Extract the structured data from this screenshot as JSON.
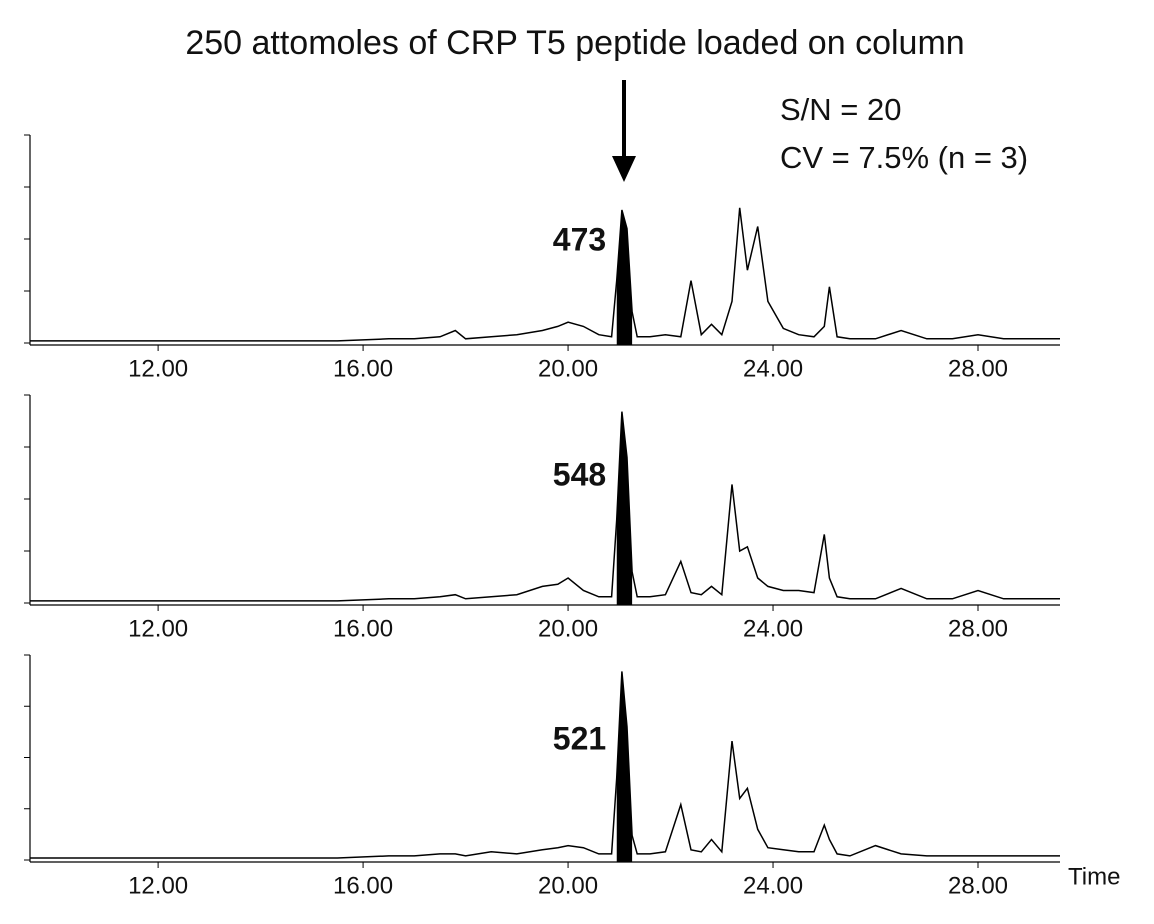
{
  "title": "250 attomoles of CRP T5 peptide loaded on column",
  "annotations": [
    "S/N = 20",
    "CV = 7.5% (n = 3)"
  ],
  "chart_data": [
    {
      "type": "line",
      "peak_area": 473,
      "peak_window": [
        20.9,
        21.3
      ],
      "x": [
        9.5,
        10.5,
        11.5,
        12.5,
        13.5,
        14.5,
        15.5,
        16.5,
        17.0,
        17.5,
        17.8,
        18.0,
        18.5,
        19.0,
        19.5,
        19.8,
        20.0,
        20.3,
        20.6,
        20.85,
        20.95,
        21.05,
        21.15,
        21.25,
        21.35,
        21.6,
        21.9,
        22.2,
        22.4,
        22.6,
        22.8,
        23.0,
        23.2,
        23.35,
        23.5,
        23.7,
        23.9,
        24.2,
        24.5,
        24.8,
        25.0,
        25.1,
        25.25,
        25.5,
        26.0,
        26.5,
        27.0,
        27.5,
        28.0,
        28.5,
        29.0,
        29.6
      ],
      "series": [
        {
          "color": "#000000",
          "values": [
            1,
            1,
            1,
            1,
            1,
            1,
            1,
            2,
            2,
            3,
            6,
            2,
            3,
            4,
            6,
            8,
            10,
            8,
            4,
            3,
            30,
            64,
            55,
            15,
            3,
            3,
            4,
            3,
            30,
            4,
            9,
            4,
            20,
            65,
            35,
            56,
            20,
            7,
            4,
            3,
            8,
            27,
            3,
            2,
            2,
            6,
            2,
            2,
            4,
            2,
            2,
            2
          ]
        }
      ],
      "xlim": [
        9.5,
        29.6
      ],
      "ylim": [
        0,
        100
      ],
      "yticks": [
        0,
        25,
        50,
        75,
        100
      ],
      "xticks": [
        {
          "value": 12,
          "label": "12.00"
        },
        {
          "value": 16,
          "label": "16.00"
        },
        {
          "value": 20,
          "label": "20.00"
        },
        {
          "value": 24,
          "label": "24.00"
        },
        {
          "value": 28,
          "label": "28.00"
        }
      ]
    },
    {
      "type": "line",
      "peak_area": 548,
      "peak_window": [
        20.9,
        21.3
      ],
      "x": [
        9.5,
        10.5,
        11.5,
        12.5,
        13.5,
        14.5,
        15.5,
        16.5,
        17.0,
        17.5,
        17.8,
        18.0,
        18.5,
        19.0,
        19.5,
        19.8,
        20.0,
        20.3,
        20.6,
        20.85,
        20.95,
        21.05,
        21.15,
        21.25,
        21.35,
        21.6,
        21.9,
        22.2,
        22.4,
        22.6,
        22.8,
        23.0,
        23.2,
        23.35,
        23.5,
        23.7,
        23.9,
        24.2,
        24.5,
        24.8,
        25.0,
        25.1,
        25.25,
        25.5,
        26.0,
        26.5,
        27.0,
        27.5,
        28.0,
        28.5,
        29.0,
        29.6
      ],
      "series": [
        {
          "color": "#000000",
          "values": [
            1,
            1,
            1,
            1,
            1,
            1,
            1,
            2,
            2,
            3,
            4,
            2,
            3,
            4,
            8,
            9,
            12,
            6,
            3,
            3,
            40,
            92,
            70,
            15,
            3,
            3,
            4,
            20,
            5,
            4,
            8,
            4,
            57,
            25,
            27,
            12,
            8,
            6,
            6,
            5,
            33,
            12,
            3,
            2,
            2,
            7,
            2,
            2,
            6,
            2,
            2,
            2
          ]
        }
      ],
      "xlim": [
        9.5,
        29.6
      ],
      "ylim": [
        0,
        100
      ],
      "yticks": [
        0,
        25,
        50,
        75,
        100
      ],
      "xticks": [
        {
          "value": 12,
          "label": "12.00"
        },
        {
          "value": 16,
          "label": "16.00"
        },
        {
          "value": 20,
          "label": "20.00"
        },
        {
          "value": 24,
          "label": "24.00"
        },
        {
          "value": 28,
          "label": "28.00"
        }
      ]
    },
    {
      "type": "line",
      "peak_area": 521,
      "peak_window": [
        20.9,
        21.3
      ],
      "xlabel": "Time",
      "x": [
        9.5,
        10.5,
        11.5,
        12.5,
        13.5,
        14.5,
        15.5,
        16.5,
        17.0,
        17.5,
        17.8,
        18.0,
        18.5,
        19.0,
        19.5,
        19.8,
        20.0,
        20.3,
        20.6,
        20.85,
        20.95,
        21.05,
        21.15,
        21.25,
        21.35,
        21.6,
        21.9,
        22.2,
        22.4,
        22.6,
        22.8,
        23.0,
        23.2,
        23.35,
        23.5,
        23.7,
        23.9,
        24.2,
        24.5,
        24.8,
        25.0,
        25.1,
        25.25,
        25.5,
        26.0,
        26.5,
        27.0,
        27.5,
        28.0,
        28.5,
        29.0,
        29.6
      ],
      "series": [
        {
          "color": "#000000",
          "values": [
            1,
            1,
            1,
            1,
            1,
            1,
            1,
            2,
            2,
            3,
            3,
            2,
            4,
            3,
            5,
            6,
            7,
            6,
            3,
            3,
            40,
            92,
            65,
            12,
            3,
            3,
            4,
            27,
            5,
            4,
            10,
            4,
            58,
            30,
            35,
            15,
            6,
            5,
            4,
            4,
            17,
            10,
            3,
            2,
            7,
            3,
            2,
            2,
            2,
            2,
            2,
            2
          ]
        }
      ],
      "xlim": [
        9.5,
        29.6
      ],
      "ylim": [
        0,
        100
      ],
      "yticks": [
        0,
        25,
        50,
        75,
        100
      ],
      "xticks": [
        {
          "value": 12,
          "label": "12.00"
        },
        {
          "value": 16,
          "label": "16.00"
        },
        {
          "value": 20,
          "label": "20.00"
        },
        {
          "value": 24,
          "label": "24.00"
        },
        {
          "value": 28,
          "label": "28.00"
        }
      ]
    }
  ]
}
